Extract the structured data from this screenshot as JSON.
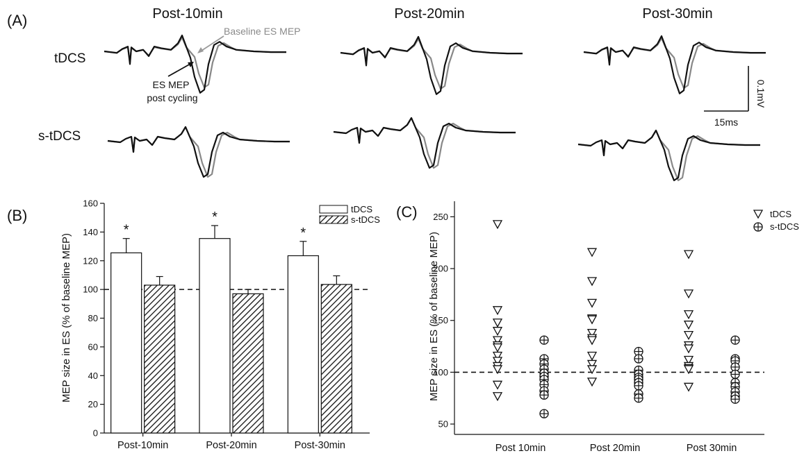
{
  "panel_labels": {
    "a": "(A)",
    "b": "(B)",
    "c": "(C)"
  },
  "panel_a": {
    "columns": [
      "Post-10min",
      "Post-20min",
      "Post-30min"
    ],
    "rows": [
      "tDCS",
      "s-tDCS"
    ],
    "baseline_label": "Baseline ES MEP",
    "post_label_line1": "ES MEP",
    "post_label_line2": "post cycling",
    "scale_y": "0.1mV",
    "scale_x": "15ms",
    "colors": {
      "post": "#111111",
      "baseline": "#888888"
    }
  },
  "chart_data": [
    {
      "type": "bar",
      "title": "",
      "ylabel": "MEP size in ES (% of baseline MEP)",
      "xlabel": "",
      "categories": [
        "Post-10min",
        "Post-20min",
        "Post-30min"
      ],
      "series": [
        {
          "name": "tDCS",
          "values": [
            125.5,
            135.5,
            123.5
          ],
          "errors": [
            10,
            9,
            10
          ],
          "fill": "open"
        },
        {
          "name": "s-tDCS",
          "values": [
            103,
            97,
            103.5
          ],
          "errors": [
            6,
            3,
            6
          ],
          "fill": "hatched"
        }
      ],
      "significance": [
        "*",
        "*",
        "*"
      ],
      "reference_line": 100,
      "ylim": [
        0,
        160
      ],
      "yticks": [
        0,
        20,
        40,
        60,
        80,
        100,
        120,
        140,
        160
      ],
      "legend": "top-right"
    },
    {
      "type": "scatter",
      "title": "",
      "ylabel": "MEP size in ES (% of baseline MEP)",
      "xlabel": "",
      "categories": [
        "Post 10min",
        "Post 20min",
        "Post 30min"
      ],
      "series": [
        {
          "name": "tDCS",
          "marker": "triangle-down",
          "values": [
            [
              243,
              160,
              148,
              140,
              131,
              126,
              124,
              116,
              111,
              106,
              103,
              88,
              77
            ],
            [
              216,
              188,
              167,
              152,
              151,
              138,
              133,
              131,
              116,
              108,
              103,
              91
            ],
            [
              214,
              176,
              156,
              146,
              136,
              126,
              123,
              112,
              106,
              104,
              103,
              86
            ]
          ]
        },
        {
          "name": "s-tDCS",
          "marker": "circle-plus",
          "values": [
            [
              131,
              113,
              108,
              103,
              99,
              96,
              93,
              88,
              82,
              78,
              60
            ],
            [
              120,
              113,
              102,
              98,
              95,
              93,
              90,
              87,
              79,
              75
            ],
            [
              131,
              113,
              111,
              105,
              98,
              90,
              86,
              81,
              77,
              74
            ]
          ]
        }
      ],
      "reference_line": 100,
      "ylim": [
        40,
        265
      ],
      "yticks": [
        50,
        100,
        150,
        200,
        250
      ],
      "legend": "top-right"
    }
  ]
}
